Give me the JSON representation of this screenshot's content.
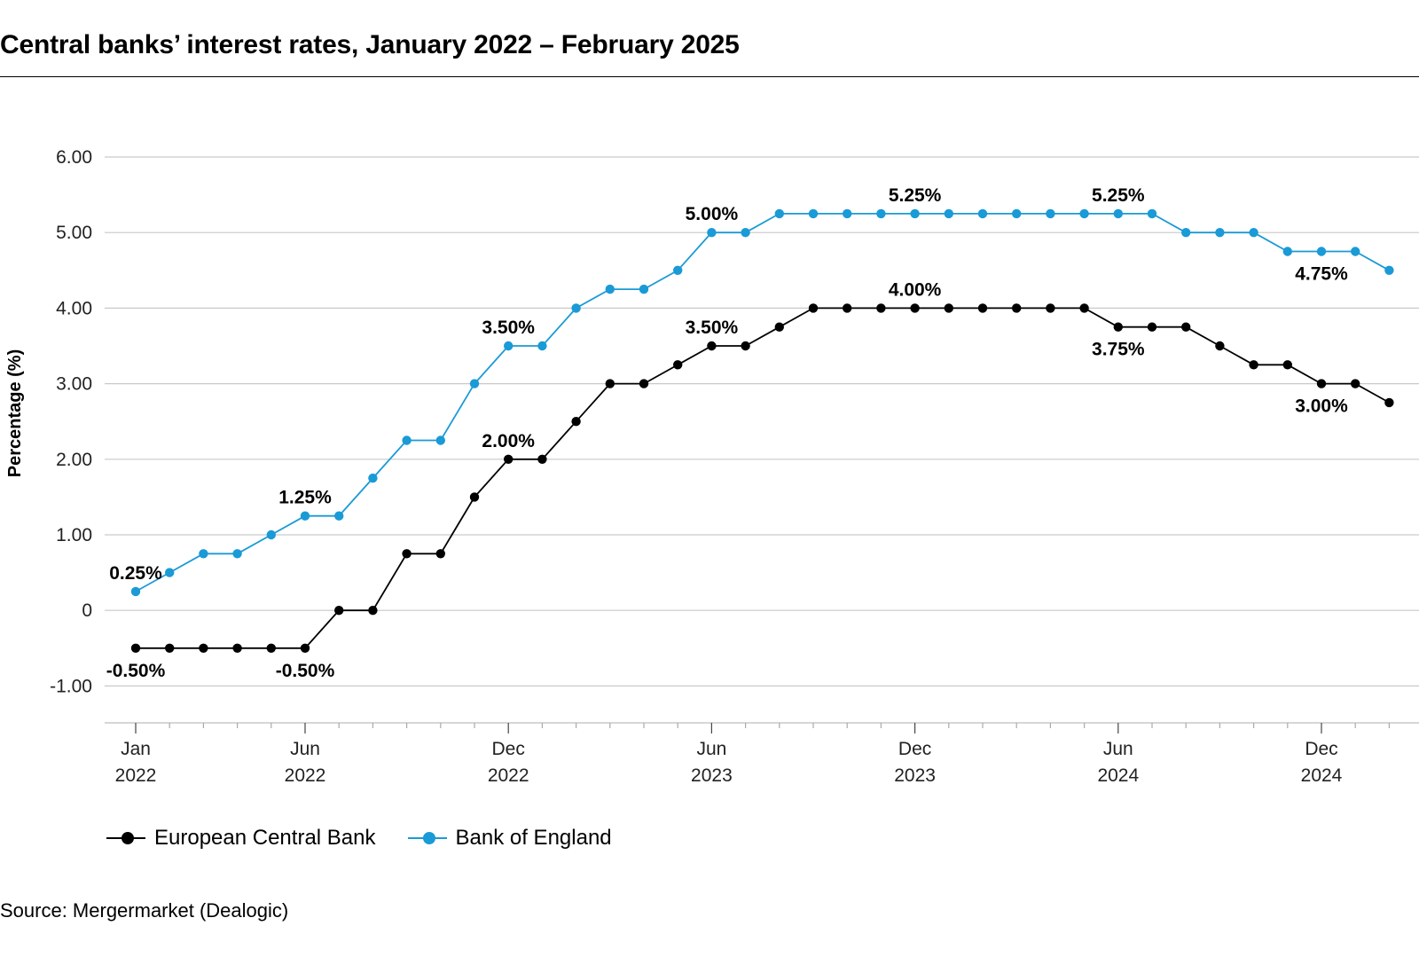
{
  "title": "Central banks’ interest rates, January 2022 – February 2025",
  "source": "Source: Mergermarket (Dealogic)",
  "legend": {
    "ecb": "European Central Bank",
    "boe": "Bank of England"
  },
  "chart_data": {
    "type": "line",
    "title": "Central banks’ interest rates, January 2022 – February 2025",
    "xlabel": "",
    "ylabel": "Percentage (%)",
    "ylim": [
      -1.5,
      6
    ],
    "grid": true,
    "legend_position": "bottom-left",
    "y_ticks": [
      {
        "value": 6,
        "label": "6.00"
      },
      {
        "value": 5,
        "label": "5.00"
      },
      {
        "value": 4,
        "label": "4.00"
      },
      {
        "value": 3,
        "label": "3.00"
      },
      {
        "value": 2,
        "label": "2.00"
      },
      {
        "value": 1,
        "label": "1.00"
      },
      {
        "value": 0,
        "label": "0"
      },
      {
        "value": -1,
        "label": "-1.00"
      }
    ],
    "x": [
      "Jan 2022",
      "Feb 2022",
      "Mar 2022",
      "Apr 2022",
      "May 2022",
      "Jun 2022",
      "Jul 2022",
      "Aug 2022",
      "Sep 2022",
      "Oct 2022",
      "Nov 2022",
      "Dec 2022",
      "Jan 2023",
      "Feb 2023",
      "Mar 2023",
      "Apr 2023",
      "May 2023",
      "Jun 2023",
      "Jul 2023",
      "Aug 2023",
      "Sep 2023",
      "Oct 2023",
      "Nov 2023",
      "Dec 2023",
      "Jan 2024",
      "Feb 2024",
      "Mar 2024",
      "Apr 2024",
      "May 2024",
      "Jun 2024",
      "Jul 2024",
      "Aug 2024",
      "Sep 2024",
      "Oct 2024",
      "Nov 2024",
      "Dec 2024",
      "Jan 2025",
      "Feb 2025"
    ],
    "x_ticks": [
      {
        "index": 0,
        "month": "Jan",
        "year": "2022"
      },
      {
        "index": 5,
        "month": "Jun",
        "year": "2022"
      },
      {
        "index": 11,
        "month": "Dec",
        "year": "2022"
      },
      {
        "index": 17,
        "month": "Jun",
        "year": "2023"
      },
      {
        "index": 23,
        "month": "Dec",
        "year": "2023"
      },
      {
        "index": 29,
        "month": "Jun",
        "year": "2024"
      },
      {
        "index": 35,
        "month": "Dec",
        "year": "2024"
      }
    ],
    "series": [
      {
        "name": "European Central Bank",
        "color": "#000000",
        "values": [
          -0.5,
          -0.5,
          -0.5,
          -0.5,
          -0.5,
          -0.5,
          0,
          0,
          0.75,
          0.75,
          1.5,
          2,
          2,
          2.5,
          3,
          3,
          3.25,
          3.5,
          3.5,
          3.75,
          4,
          4,
          4,
          4,
          4,
          4,
          4,
          4,
          4,
          3.75,
          3.75,
          3.75,
          3.5,
          3.25,
          3.25,
          3,
          3,
          2.75
        ],
        "annotations": [
          {
            "index": 0,
            "label": "-0.50%",
            "pos": "below"
          },
          {
            "index": 5,
            "label": "-0.50%",
            "pos": "below"
          },
          {
            "index": 11,
            "label": "2.00%",
            "pos": "above"
          },
          {
            "index": 17,
            "label": "3.50%",
            "pos": "above"
          },
          {
            "index": 23,
            "label": "4.00%",
            "pos": "above"
          },
          {
            "index": 29,
            "label": "3.75%",
            "pos": "below"
          },
          {
            "index": 35,
            "label": "3.00%",
            "pos": "below"
          }
        ]
      },
      {
        "name": "Bank of England",
        "color": "#1a9ad6",
        "values": [
          0.25,
          0.5,
          0.75,
          0.75,
          1,
          1.25,
          1.25,
          1.75,
          2.25,
          2.25,
          3,
          3.5,
          3.5,
          4,
          4.25,
          4.25,
          4.5,
          5,
          5,
          5.25,
          5.25,
          5.25,
          5.25,
          5.25,
          5.25,
          5.25,
          5.25,
          5.25,
          5.25,
          5.25,
          5.25,
          5,
          5,
          5,
          4.75,
          4.75,
          4.75,
          4.5
        ],
        "annotations": [
          {
            "index": 0,
            "label": "0.25%",
            "pos": "above"
          },
          {
            "index": 5,
            "label": "1.25%",
            "pos": "above"
          },
          {
            "index": 11,
            "label": "3.50%",
            "pos": "above"
          },
          {
            "index": 17,
            "label": "5.00%",
            "pos": "above"
          },
          {
            "index": 23,
            "label": "5.25%",
            "pos": "above"
          },
          {
            "index": 29,
            "label": "5.25%",
            "pos": "above"
          },
          {
            "index": 35,
            "label": "4.75%",
            "pos": "below"
          }
        ]
      }
    ]
  }
}
